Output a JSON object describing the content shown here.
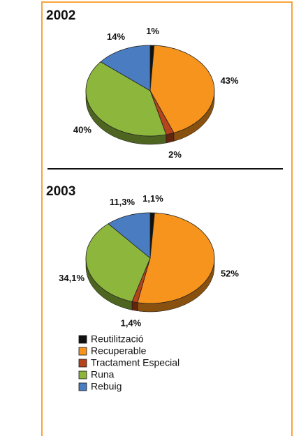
{
  "chart_data": [
    {
      "type": "pie",
      "title": "2002",
      "categories": [
        "Reutilització",
        "Recuperable",
        "Tractament Especial",
        "Runa",
        "Rebuig"
      ],
      "values": [
        1,
        43,
        2,
        40,
        14
      ],
      "value_labels": [
        "1%",
        "43%",
        "2%",
        "40%",
        "14%"
      ],
      "colors": [
        "#111111",
        "#f7941d",
        "#b5441c",
        "#8db63c",
        "#4a7cc1"
      ]
    },
    {
      "type": "pie",
      "title": "2003",
      "categories": [
        "Reutilització",
        "Recuperable",
        "Tractament Especial",
        "Runa",
        "Rebuig"
      ],
      "values": [
        1.1,
        52,
        1.4,
        34.1,
        11.3
      ],
      "value_labels": [
        "1,1%",
        "52%",
        "1,4%",
        "34,1%",
        "11,3%"
      ],
      "colors": [
        "#111111",
        "#f7941d",
        "#b5441c",
        "#8db63c",
        "#4a7cc1"
      ]
    }
  ]
}
